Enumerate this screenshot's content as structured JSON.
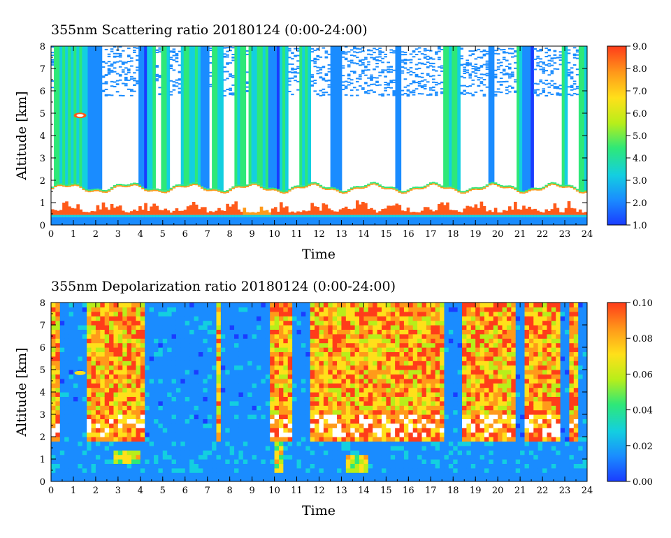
{
  "chart_data": [
    {
      "type": "heatmap",
      "title": "355nm Scattering ratio  20180124 (0:00-24:00)",
      "xlabel": "Time",
      "ylabel": "Altitude [km]",
      "xlim": [
        0,
        24
      ],
      "ylim": [
        0,
        8
      ],
      "x_ticks": [
        "0",
        "1",
        "2",
        "3",
        "4",
        "5",
        "6",
        "7",
        "8",
        "9",
        "10",
        "11",
        "12",
        "13",
        "14",
        "15",
        "16",
        "17",
        "18",
        "19",
        "20",
        "21",
        "22",
        "23",
        "24"
      ],
      "y_ticks": [
        "0",
        "1",
        "2",
        "3",
        "4",
        "5",
        "6",
        "7",
        "8"
      ],
      "colorbar": {
        "range": [
          1.0,
          9.0
        ],
        "ticks": [
          "1.0",
          "2.0",
          "3.0",
          "4.0",
          "5.0",
          "6.0",
          "7.0",
          "8.0",
          "9.0"
        ]
      },
      "colormap": [
        "#1a3cff",
        "#1a8cff",
        "#13cfe0",
        "#2ee878",
        "#b8ee1a",
        "#ffe01a",
        "#ff9a1a",
        "#ff3c1a"
      ],
      "features": {
        "boundary_layer_top_km": 1.75,
        "saturated_layer_km": [
          0.3,
          1.75
        ],
        "clear_air_high_km": [
          0.0,
          8.0
        ]
      }
    },
    {
      "type": "heatmap",
      "title": "355nm Depolarization ratio  20180124 (0:00-24:00)",
      "xlabel": "Time",
      "ylabel": "Altitude [km]",
      "xlim": [
        0,
        24
      ],
      "ylim": [
        0,
        8
      ],
      "x_ticks": [
        "0",
        "1",
        "2",
        "3",
        "4",
        "5",
        "6",
        "7",
        "8",
        "9",
        "10",
        "11",
        "12",
        "13",
        "14",
        "15",
        "16",
        "17",
        "18",
        "19",
        "20",
        "21",
        "22",
        "23",
        "24"
      ],
      "y_ticks": [
        "0",
        "1",
        "2",
        "3",
        "4",
        "5",
        "6",
        "7",
        "8"
      ],
      "colorbar": {
        "range": [
          0.0,
          0.1
        ],
        "ticks": [
          "0.00",
          "0.02",
          "0.04",
          "0.06",
          "0.08",
          "0.10"
        ]
      },
      "colormap": [
        "#1a3cff",
        "#1a8cff",
        "#13cfe0",
        "#2ee878",
        "#b8ee1a",
        "#ffe01a",
        "#ff9a1a",
        "#ff3c1a"
      ]
    }
  ]
}
